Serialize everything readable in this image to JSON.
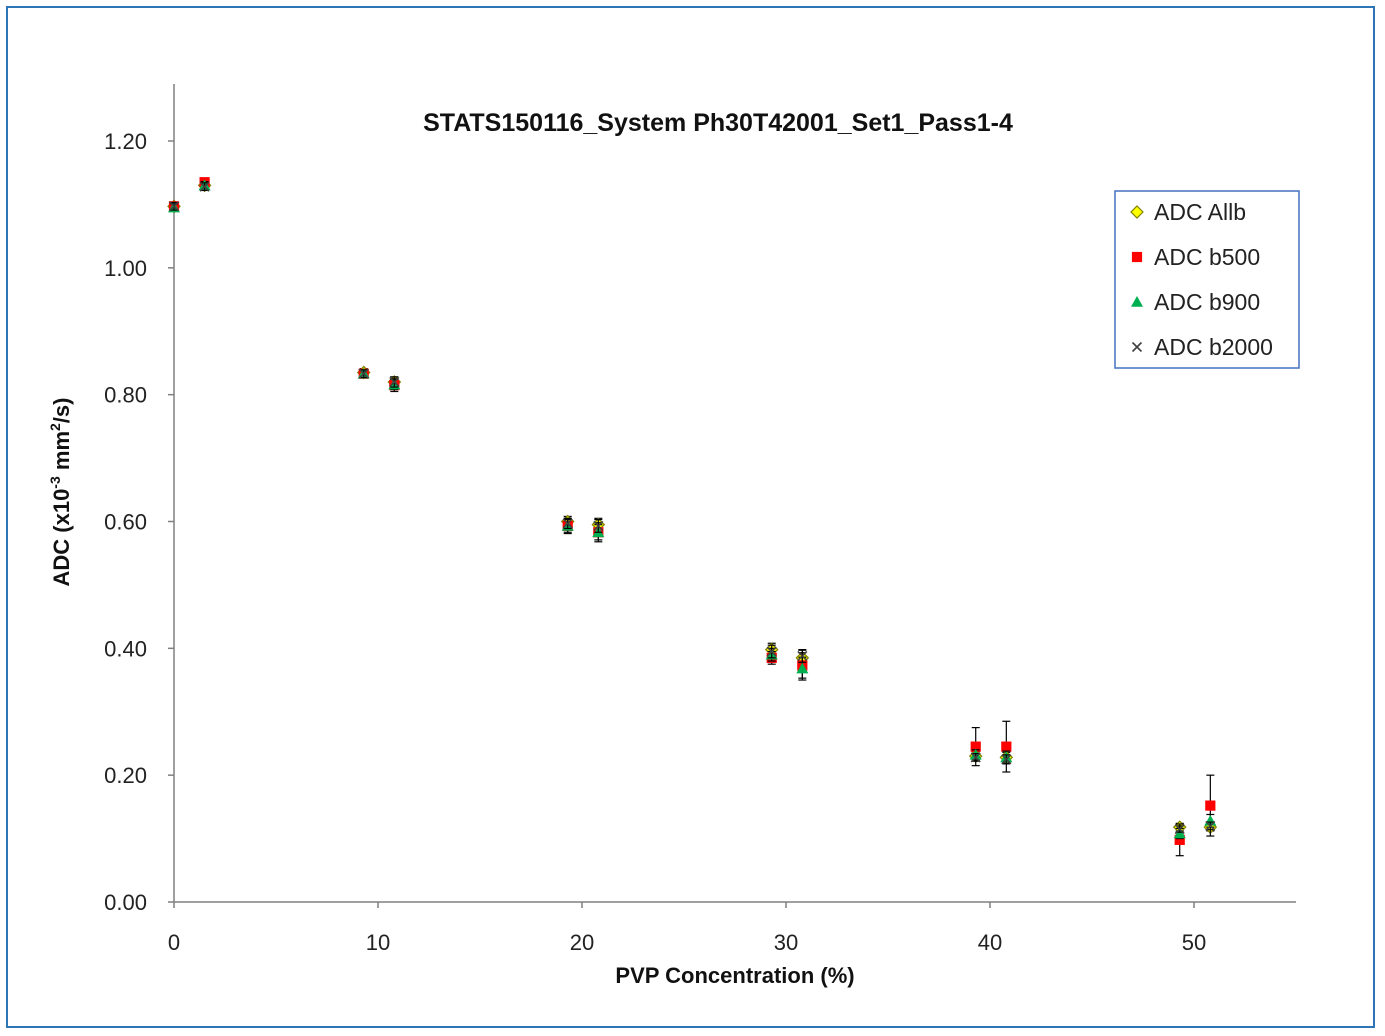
{
  "chart_data": {
    "type": "scatter",
    "title": "STATS150116_System Ph30T42001_Set1_Pass1-4",
    "xlabel": "PVP Concentration  (%)",
    "ylabel_main": "ADC (x10",
    "ylabel_sup": "-3",
    "ylabel_mid": " mm",
    "ylabel_sup2": "2",
    "ylabel_end": "/s)",
    "xlim": [
      0,
      55
    ],
    "ylim": [
      0,
      1.2
    ],
    "x_ticks": [
      "0",
      "10",
      "20",
      "30",
      "40",
      "50"
    ],
    "x_tick_values": [
      0,
      10,
      20,
      30,
      40,
      50
    ],
    "y_ticks": [
      "0.00",
      "0.20",
      "0.40",
      "0.60",
      "0.80",
      "1.00",
      "1.20"
    ],
    "y_tick_values": [
      0,
      0.2,
      0.4,
      0.6,
      0.8,
      1.0,
      1.2
    ],
    "grid": false,
    "legend_position": "top-right",
    "x": [
      0,
      1.5,
      9.3,
      10.8,
      19.3,
      20.8,
      29.3,
      30.8,
      39.3,
      40.8,
      49.3,
      50.8
    ],
    "series": [
      {
        "name": "ADC Allb",
        "marker": "diamond",
        "color": "#ffff00",
        "edge": "#808000",
        "values": [
          1.097,
          1.13,
          0.835,
          0.82,
          0.6,
          0.595,
          0.398,
          0.385,
          0.23,
          0.228,
          0.118,
          0.118
        ],
        "err": [
          0.006,
          0.006,
          0.006,
          0.008,
          0.008,
          0.01,
          0.01,
          0.012,
          0.007,
          0.008,
          0.006,
          0.006
        ]
      },
      {
        "name": "ADC b500",
        "marker": "square",
        "color": "#ff0000",
        "values": [
          1.097,
          1.135,
          0.833,
          0.815,
          0.593,
          0.583,
          0.385,
          0.373,
          0.245,
          0.245,
          0.098,
          0.152
        ],
        "err": [
          0.006,
          0.006,
          0.006,
          0.01,
          0.012,
          0.015,
          0.01,
          0.02,
          0.03,
          0.04,
          0.025,
          0.048
        ]
      },
      {
        "name": "ADC b900",
        "marker": "triangle",
        "color": "#00b050",
        "values": [
          1.095,
          1.13,
          0.833,
          0.816,
          0.593,
          0.583,
          0.39,
          0.368,
          0.232,
          0.228,
          0.108,
          0.128
        ],
        "err": [
          0.006,
          0.006,
          0.006,
          0.008,
          0.01,
          0.012,
          0.01,
          0.018,
          0.008,
          0.01,
          0.008,
          0.01
        ]
      },
      {
        "name": "ADC b2000",
        "marker": "x",
        "color": "#404040",
        "values": [
          1.097,
          1.128,
          0.833,
          0.82,
          0.597,
          0.593,
          0.395,
          0.388,
          0.228,
          0.225,
          0.115,
          0.12
        ],
        "err": [
          0.006,
          0.006,
          0.006,
          0.008,
          0.008,
          0.01,
          0.01,
          0.01,
          0.006,
          0.007,
          0.005,
          0.006
        ]
      }
    ]
  },
  "colors": {
    "frame_border": "#2e75b6",
    "legend_border": "#4472c4",
    "axis": "#808080"
  }
}
